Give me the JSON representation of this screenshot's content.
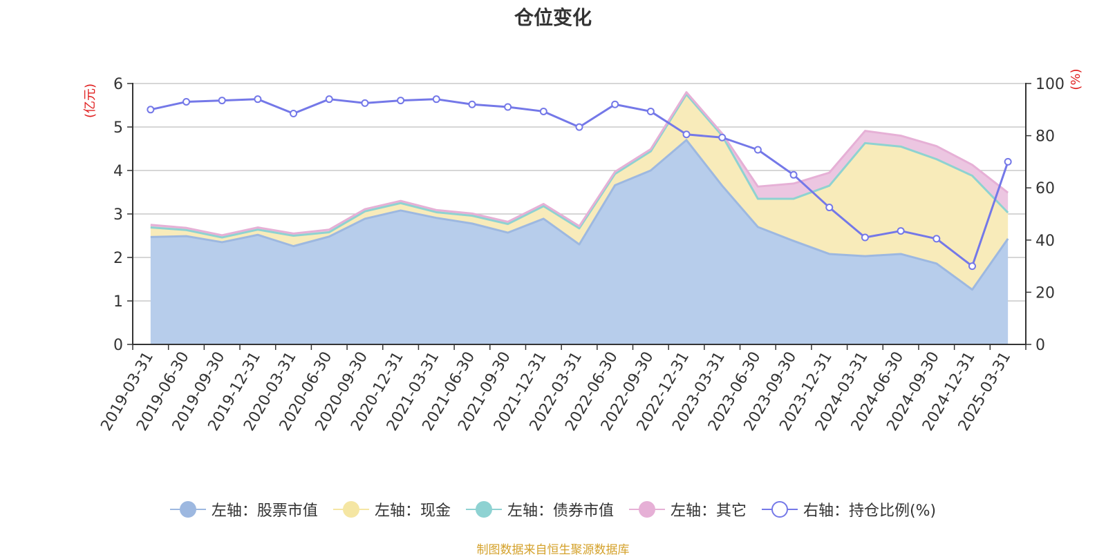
{
  "chart_data": {
    "type": "area",
    "title": "仓位变化",
    "x": [
      "2019-03-31",
      "2019-06-30",
      "2019-09-30",
      "2019-12-31",
      "2020-03-31",
      "2020-06-30",
      "2020-09-30",
      "2020-12-31",
      "2021-03-31",
      "2021-06-30",
      "2021-09-30",
      "2021-12-31",
      "2022-03-31",
      "2022-06-30",
      "2022-09-30",
      "2022-12-31",
      "2023-03-31",
      "2023-06-30",
      "2023-09-30",
      "2023-12-31",
      "2024-03-31",
      "2024-06-30",
      "2024-09-30",
      "2024-12-31",
      "2025-03-31"
    ],
    "y_left": {
      "label": "(亿元)",
      "ylim": [
        0,
        6
      ],
      "ticks": [
        "0",
        "1",
        "2",
        "3",
        "4",
        "5",
        "6"
      ]
    },
    "y_right": {
      "label": "(%)",
      "ylim": [
        0,
        100
      ],
      "ticks": [
        "0",
        "20",
        "40",
        "60",
        "80",
        "100"
      ]
    },
    "grid": true,
    "legend_position": "bottom",
    "series": [
      {
        "name": "左轴：股票市值",
        "axis": "left",
        "kind": "area",
        "color": "#9db8e0",
        "fill": "#b7cdeb",
        "values": [
          2.47,
          2.49,
          2.35,
          2.52,
          2.26,
          2.48,
          2.89,
          3.08,
          2.91,
          2.78,
          2.57,
          2.89,
          2.3,
          3.66,
          4.0,
          4.7,
          3.65,
          2.7,
          2.38,
          2.08,
          2.03,
          2.08,
          1.86,
          1.26,
          2.43
        ]
      },
      {
        "name": "左轴：现金",
        "axis": "left",
        "kind": "area",
        "color": "#f5e6a3",
        "fill": "#f8ebba",
        "values": [
          0.22,
          0.14,
          0.11,
          0.12,
          0.24,
          0.1,
          0.17,
          0.17,
          0.13,
          0.18,
          0.2,
          0.29,
          0.37,
          0.26,
          0.44,
          1.05,
          1.15,
          0.65,
          0.97,
          1.57,
          2.6,
          2.47,
          2.4,
          2.62,
          0.6
        ]
      },
      {
        "name": "左轴：债券市值",
        "axis": "left",
        "kind": "area",
        "color": "#8ed2d2",
        "fill": "#a9dcdc",
        "values": [
          0,
          0,
          0,
          0,
          0,
          0,
          0,
          0,
          0,
          0,
          0,
          0,
          0,
          0,
          0,
          0,
          0,
          0,
          0,
          0,
          0,
          0,
          0,
          0,
          0
        ]
      },
      {
        "name": "左轴：其它",
        "axis": "left",
        "kind": "area",
        "color": "#e6b0d6",
        "fill": "#ecc6e1",
        "values": [
          0.06,
          0.05,
          0.05,
          0.05,
          0.05,
          0.06,
          0.05,
          0.05,
          0.05,
          0.05,
          0.05,
          0.05,
          0.05,
          0.05,
          0.05,
          0.05,
          0.05,
          0.28,
          0.35,
          0.3,
          0.28,
          0.25,
          0.3,
          0.25,
          0.46
        ]
      },
      {
        "name": "右轴：持仓比例(%)",
        "axis": "right",
        "kind": "line",
        "color": "#7478e8",
        "values": [
          90,
          93,
          93.5,
          94,
          88.5,
          94,
          92.5,
          93.5,
          94,
          92,
          91,
          89.3,
          83.3,
          92,
          89.3,
          80.5,
          79.3,
          74.6,
          65,
          52.5,
          41,
          43.5,
          40.5,
          30,
          70
        ]
      }
    ]
  },
  "footer": "制图数据来自恒生聚源数据库"
}
